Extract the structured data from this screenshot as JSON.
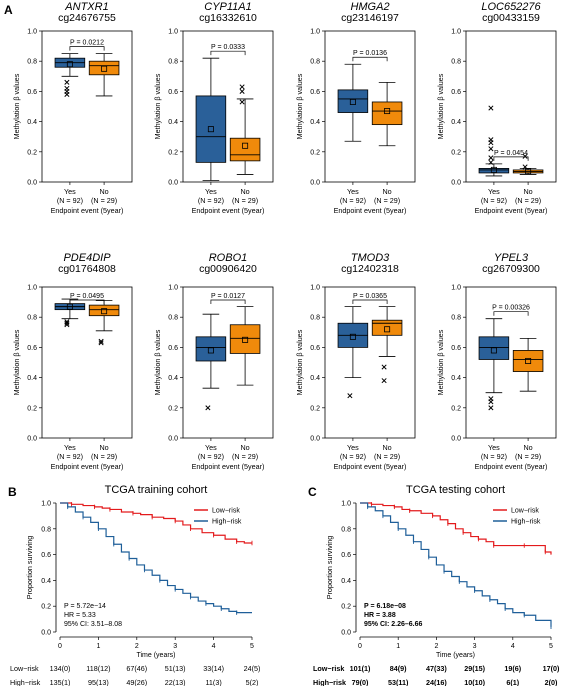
{
  "panels": {
    "a": "A",
    "b": "B",
    "c": "C"
  },
  "colors": {
    "yes_box": "#2a6099",
    "no_box": "#f08a0b",
    "low_risk": "#e31a1c",
    "high_risk": "#1f5f99"
  },
  "chart_data": [
    {
      "type": "box",
      "panel": "A",
      "ylabel": "Methylation β values",
      "xlabel": "Endpoint event (5year)",
      "ylim": [
        0,
        1.0
      ],
      "yticks": [
        "0.0",
        "0.2",
        "0.4",
        "0.6",
        "0.8",
        "1.0"
      ],
      "group_labels": [
        {
          "name": "Yes",
          "n": "(N = 92)"
        },
        {
          "name": "No",
          "n": "(N = 29)"
        }
      ],
      "genes": [
        {
          "gene": "ANTXR1",
          "probe": "cg24676755",
          "p_value": "P = 0.0212",
          "boxes": [
            {
              "q1": 0.76,
              "median": 0.79,
              "q3": 0.82,
              "low": 0.7,
              "high": 0.85,
              "mean": 0.78,
              "outliers": [
                0.66,
                0.62,
                0.6,
                0.58
              ]
            },
            {
              "q1": 0.71,
              "median": 0.77,
              "q3": 0.8,
              "low": 0.57,
              "high": 0.85,
              "mean": 0.75,
              "outliers": []
            }
          ]
        },
        {
          "gene": "CYP11A1",
          "probe": "cg16332610",
          "p_value": "P = 0.0333",
          "boxes": [
            {
              "q1": 0.13,
              "median": 0.3,
              "q3": 0.57,
              "low": 0.01,
              "high": 0.82,
              "mean": 0.35,
              "outliers": []
            },
            {
              "q1": 0.14,
              "median": 0.18,
              "q3": 0.29,
              "low": 0.05,
              "high": 0.55,
              "mean": 0.24,
              "outliers": [
                0.63,
                0.6,
                0.53
              ]
            }
          ]
        },
        {
          "gene": "HMGA2",
          "probe": "cg23146197",
          "p_value": "P = 0.0136",
          "boxes": [
            {
              "q1": 0.46,
              "median": 0.55,
              "q3": 0.61,
              "low": 0.27,
              "high": 0.78,
              "mean": 0.53,
              "outliers": []
            },
            {
              "q1": 0.38,
              "median": 0.47,
              "q3": 0.53,
              "low": 0.24,
              "high": 0.66,
              "mean": 0.47,
              "outliers": []
            }
          ]
        },
        {
          "gene": "LOC652276",
          "probe": "cg00433159",
          "p_value": "P = 0.0454",
          "boxes": [
            {
              "q1": 0.06,
              "median": 0.08,
              "q3": 0.09,
              "low": 0.04,
              "high": 0.12,
              "mean": 0.08,
              "outliers": [
                0.49,
                0.28,
                0.26,
                0.22,
                0.16,
                0.13
              ]
            },
            {
              "q1": 0.06,
              "median": 0.07,
              "q3": 0.08,
              "low": 0.05,
              "high": 0.09,
              "mean": 0.07,
              "outliers": [
                0.17,
                0.1
              ]
            }
          ]
        },
        {
          "gene": "PDE4DIP",
          "probe": "cg01764808",
          "p_value": "P = 0.0495",
          "boxes": [
            {
              "q1": 0.85,
              "median": 0.87,
              "q3": 0.89,
              "low": 0.79,
              "high": 0.92,
              "mean": 0.87,
              "outliers": [
                0.77,
                0.76,
                0.75
              ]
            },
            {
              "q1": 0.81,
              "median": 0.85,
              "q3": 0.88,
              "low": 0.71,
              "high": 0.91,
              "mean": 0.84,
              "outliers": [
                0.64,
                0.63
              ]
            }
          ]
        },
        {
          "gene": "ROBO1",
          "probe": "cg00906420",
          "p_value": "P = 0.0127",
          "boxes": [
            {
              "q1": 0.51,
              "median": 0.6,
              "q3": 0.67,
              "low": 0.33,
              "high": 0.82,
              "mean": 0.58,
              "outliers": [
                0.2
              ]
            },
            {
              "q1": 0.56,
              "median": 0.66,
              "q3": 0.75,
              "low": 0.35,
              "high": 0.87,
              "mean": 0.65,
              "outliers": []
            }
          ]
        },
        {
          "gene": "TMOD3",
          "probe": "cg12402318",
          "p_value": "P = 0.0365",
          "boxes": [
            {
              "q1": 0.6,
              "median": 0.68,
              "q3": 0.76,
              "low": 0.4,
              "high": 0.87,
              "mean": 0.67,
              "outliers": [
                0.28
              ]
            },
            {
              "q1": 0.68,
              "median": 0.76,
              "q3": 0.78,
              "low": 0.54,
              "high": 0.87,
              "mean": 0.72,
              "outliers": [
                0.47,
                0.38
              ]
            }
          ]
        },
        {
          "gene": "YPEL3",
          "probe": "cg26709300",
          "p_value": "P = 0.00326",
          "boxes": [
            {
              "q1": 0.52,
              "median": 0.6,
              "q3": 0.67,
              "low": 0.3,
              "high": 0.79,
              "mean": 0.58,
              "outliers": [
                0.26,
                0.24,
                0.2
              ]
            },
            {
              "q1": 0.44,
              "median": 0.52,
              "q3": 0.58,
              "low": 0.31,
              "high": 0.66,
              "mean": 0.51,
              "outliers": []
            }
          ]
        }
      ]
    },
    {
      "type": "line",
      "panel": "B",
      "title": "TCGA training cohort",
      "xlabel": "Time (years)",
      "ylabel": "Proportion surviving",
      "xlim": [
        0,
        5
      ],
      "ylim": [
        0,
        1.0
      ],
      "xticks": [
        "0",
        "1",
        "2",
        "3",
        "4",
        "5"
      ],
      "yticks": [
        "0.0",
        "0.2",
        "0.4",
        "0.6",
        "0.8",
        "1.0"
      ],
      "stats": [
        "P = 5.72e−14",
        "HR = 5.33",
        "95% CI: 3.51–8.08"
      ],
      "stats_bold": false,
      "series": [
        {
          "name": "Low−risk",
          "points": [
            [
              0,
              1.0
            ],
            [
              0.3,
              0.99
            ],
            [
              0.6,
              0.98
            ],
            [
              0.9,
              0.97
            ],
            [
              1.1,
              0.96
            ],
            [
              1.3,
              0.95
            ],
            [
              1.6,
              0.93
            ],
            [
              1.9,
              0.92
            ],
            [
              2.1,
              0.91
            ],
            [
              2.4,
              0.89
            ],
            [
              2.7,
              0.88
            ],
            [
              3.0,
              0.86
            ],
            [
              3.2,
              0.83
            ],
            [
              3.4,
              0.8
            ],
            [
              3.7,
              0.77
            ],
            [
              4.0,
              0.75
            ],
            [
              4.3,
              0.72
            ],
            [
              4.6,
              0.7
            ],
            [
              4.8,
              0.69
            ],
            [
              5.0,
              0.69
            ]
          ],
          "risk_table": [
            "134(0)",
            "118(12)",
            "67(46)",
            "51(13)",
            "33(14)",
            "24(5)"
          ]
        },
        {
          "name": "High−risk",
          "points": [
            [
              0,
              1.0
            ],
            [
              0.2,
              0.97
            ],
            [
              0.4,
              0.93
            ],
            [
              0.6,
              0.89
            ],
            [
              0.8,
              0.85
            ],
            [
              1.0,
              0.8
            ],
            [
              1.2,
              0.74
            ],
            [
              1.4,
              0.68
            ],
            [
              1.6,
              0.62
            ],
            [
              1.8,
              0.57
            ],
            [
              2.0,
              0.52
            ],
            [
              2.2,
              0.48
            ],
            [
              2.4,
              0.44
            ],
            [
              2.6,
              0.4
            ],
            [
              2.8,
              0.36
            ],
            [
              3.0,
              0.33
            ],
            [
              3.2,
              0.3
            ],
            [
              3.4,
              0.27
            ],
            [
              3.6,
              0.24
            ],
            [
              3.8,
              0.22
            ],
            [
              4.0,
              0.2
            ],
            [
              4.2,
              0.18
            ],
            [
              4.4,
              0.16
            ],
            [
              4.6,
              0.15
            ],
            [
              5.0,
              0.15
            ]
          ],
          "risk_table": [
            "135(1)",
            "95(13)",
            "49(26)",
            "22(13)",
            "11(3)",
            "5(2)"
          ]
        }
      ]
    },
    {
      "type": "line",
      "panel": "C",
      "title": "TCGA testing cohort",
      "xlabel": "Time (years)",
      "ylabel": "Proportion surviving",
      "xlim": [
        0,
        5
      ],
      "ylim": [
        0,
        1.0
      ],
      "xticks": [
        "0",
        "1",
        "2",
        "3",
        "4",
        "5"
      ],
      "yticks": [
        "0.0",
        "0.2",
        "0.4",
        "0.6",
        "0.8",
        "1.0"
      ],
      "stats": [
        "P = 6.18e−08",
        "HR = 3.88",
        "95% CI: 2.26–6.66"
      ],
      "stats_bold": true,
      "series": [
        {
          "name": "Low−risk",
          "points": [
            [
              0,
              1.0
            ],
            [
              0.3,
              0.99
            ],
            [
              0.6,
              0.98
            ],
            [
              0.9,
              0.97
            ],
            [
              1.1,
              0.95
            ],
            [
              1.3,
              0.94
            ],
            [
              1.6,
              0.92
            ],
            [
              1.9,
              0.9
            ],
            [
              2.1,
              0.87
            ],
            [
              2.3,
              0.84
            ],
            [
              2.5,
              0.8
            ],
            [
              2.7,
              0.77
            ],
            [
              2.9,
              0.74
            ],
            [
              3.1,
              0.72
            ],
            [
              3.3,
              0.7
            ],
            [
              3.5,
              0.67
            ],
            [
              3.8,
              0.67
            ],
            [
              4.3,
              0.67
            ],
            [
              4.7,
              0.67
            ],
            [
              4.85,
              0.62
            ],
            [
              5.0,
              0.6
            ]
          ],
          "risk_table": [
            "101(1)",
            "84(9)",
            "47(33)",
            "29(15)",
            "19(6)",
            "17(0)"
          ]
        },
        {
          "name": "High−risk",
          "points": [
            [
              0,
              1.0
            ],
            [
              0.2,
              0.97
            ],
            [
              0.4,
              0.94
            ],
            [
              0.6,
              0.9
            ],
            [
              0.8,
              0.85
            ],
            [
              1.0,
              0.8
            ],
            [
              1.2,
              0.75
            ],
            [
              1.4,
              0.7
            ],
            [
              1.6,
              0.64
            ],
            [
              1.8,
              0.58
            ],
            [
              2.0,
              0.52
            ],
            [
              2.2,
              0.47
            ],
            [
              2.4,
              0.43
            ],
            [
              2.6,
              0.39
            ],
            [
              2.8,
              0.35
            ],
            [
              3.0,
              0.32
            ],
            [
              3.2,
              0.28
            ],
            [
              3.4,
              0.25
            ],
            [
              3.6,
              0.22
            ],
            [
              3.8,
              0.18
            ],
            [
              4.0,
              0.15
            ],
            [
              4.3,
              0.13
            ],
            [
              4.6,
              0.09
            ],
            [
              5.0,
              0.04
            ]
          ],
          "risk_table": [
            "79(0)",
            "53(11)",
            "24(16)",
            "10(10)",
            "6(1)",
            "2(0)"
          ]
        }
      ]
    }
  ]
}
